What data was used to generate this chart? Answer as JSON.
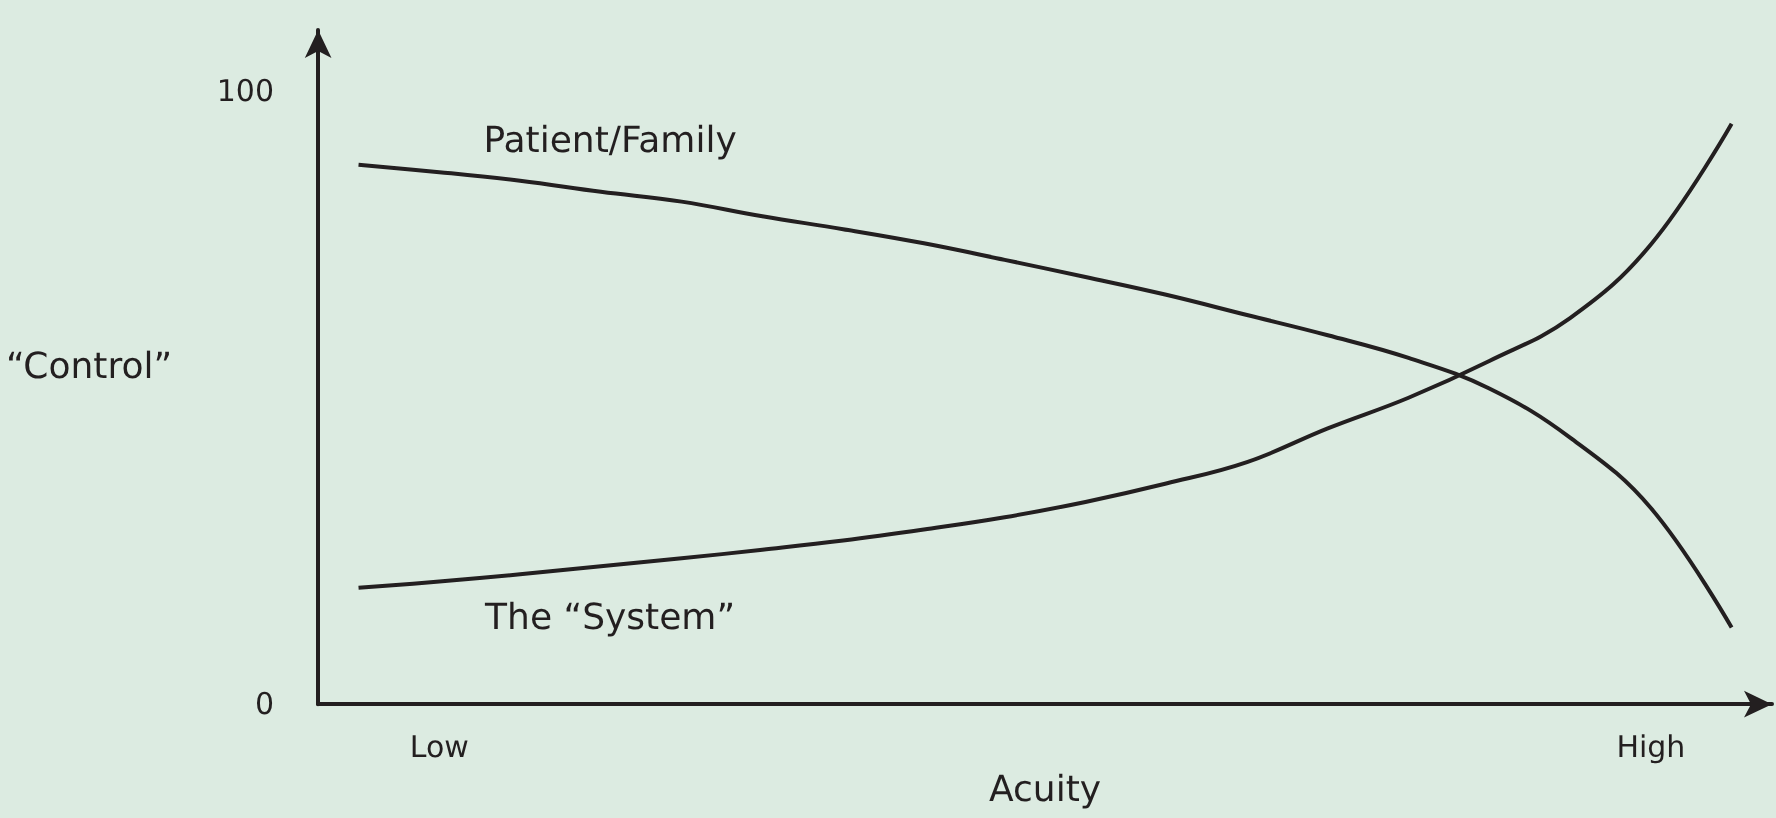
{
  "chart_data": {
    "type": "line",
    "xlabel": "Acuity",
    "ylabel": "“Control”",
    "categories": [
      null,
      "Low",
      null,
      null,
      null,
      null,
      null,
      null,
      null,
      null,
      null,
      null,
      null,
      null,
      null,
      null,
      "High",
      null
    ],
    "ylim": [
      0,
      110
    ],
    "yticks": [
      0,
      100
    ],
    "series": [
      {
        "name": "Patient/Family",
        "color": "#231f20",
        "values": [
          88,
          86.8,
          85.4,
          83.6,
          82,
          79.6,
          77.5,
          75.2,
          72.5,
          69.7,
          66.8,
          63.5,
          60.2,
          56.5,
          51.5,
          43.5,
          32,
          12.5
        ]
      },
      {
        "name": "The “System”",
        "color": "#231f20",
        "values": [
          19,
          20,
          21.2,
          22.5,
          23.8,
          25.2,
          26.7,
          28.5,
          30.5,
          33,
          36,
          39.5,
          45,
          50,
          56,
          63,
          75,
          94.7
        ]
      }
    ],
    "grid": false,
    "legend": false,
    "marker": "none",
    "line_style": "solid"
  }
}
